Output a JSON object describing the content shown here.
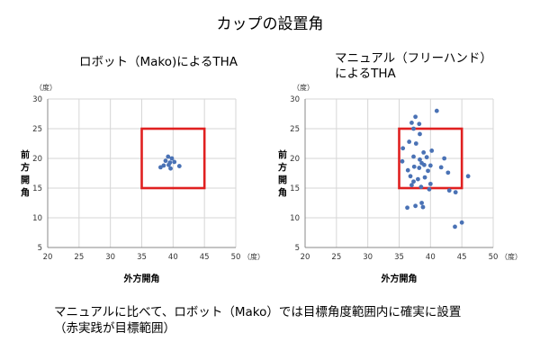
{
  "page": {
    "title": "カップの設置角",
    "caption_line1": "マニュアルに比べて、ロボット（Mako）では目標角度範囲内に確実に設置",
    "caption_line2": "（赤実践が目標範囲）"
  },
  "colors": {
    "point": "#4a72b5",
    "target_box": "#e02020",
    "grid": "#d6d6d6"
  },
  "chart_data": [
    {
      "type": "scatter",
      "title": "ロボット（Mako)によるTHA",
      "xlabel": "外方開角",
      "ylabel": "前方開角",
      "unit": "（度）",
      "xlim": [
        20,
        50
      ],
      "ylim": [
        5,
        30
      ],
      "xticks": [
        20,
        25,
        30,
        35,
        40,
        45,
        50
      ],
      "yticks": [
        5,
        10,
        15,
        20,
        25,
        30
      ],
      "grid": true,
      "target_box": {
        "x": [
          35,
          45
        ],
        "y": [
          15,
          25
        ]
      },
      "points": [
        [
          39.2,
          20.3
        ],
        [
          39.8,
          20.0
        ],
        [
          38.8,
          19.6
        ],
        [
          39.5,
          19.3
        ],
        [
          40.2,
          19.4
        ],
        [
          38.5,
          18.8
        ],
        [
          39.3,
          18.9
        ],
        [
          41.0,
          18.7
        ],
        [
          38.0,
          18.5
        ],
        [
          39.6,
          18.3
        ]
      ]
    },
    {
      "type": "scatter",
      "title_line1": "マニュアル（フリーハンド）",
      "title_line2": "によるTHA",
      "xlabel": "外方開角",
      "ylabel": "前方開角",
      "unit": "（度）",
      "xlim": [
        20,
        50
      ],
      "ylim": [
        5,
        30
      ],
      "xticks": [
        20,
        25,
        30,
        35,
        40,
        45,
        50
      ],
      "yticks": [
        5,
        10,
        15,
        20,
        25,
        30
      ],
      "grid": true,
      "target_box": {
        "x": [
          35,
          45
        ],
        "y": [
          15,
          25
        ]
      },
      "points": [
        [
          41.0,
          28.0
        ],
        [
          37.6,
          27.0
        ],
        [
          37.0,
          26.0
        ],
        [
          38.2,
          25.8
        ],
        [
          37.3,
          25.0
        ],
        [
          38.3,
          24.1
        ],
        [
          36.6,
          22.8
        ],
        [
          37.7,
          22.5
        ],
        [
          35.6,
          21.7
        ],
        [
          40.2,
          21.3
        ],
        [
          38.9,
          21.0
        ],
        [
          37.3,
          20.3
        ],
        [
          39.4,
          20.2
        ],
        [
          42.2,
          20.0
        ],
        [
          38.3,
          19.8
        ],
        [
          35.5,
          19.5
        ],
        [
          38.6,
          19.2
        ],
        [
          39.0,
          18.9
        ],
        [
          40.0,
          18.8
        ],
        [
          37.4,
          18.6
        ],
        [
          41.7,
          18.5
        ],
        [
          38.2,
          18.4
        ],
        [
          36.4,
          18.0
        ],
        [
          39.6,
          17.9
        ],
        [
          42.8,
          17.6
        ],
        [
          36.8,
          17.0
        ],
        [
          46.0,
          17.0
        ],
        [
          39.1,
          16.8
        ],
        [
          38.0,
          16.5
        ],
        [
          37.3,
          16.1
        ],
        [
          40.0,
          15.7
        ],
        [
          37.0,
          15.5
        ],
        [
          38.5,
          15.2
        ],
        [
          39.8,
          14.8
        ],
        [
          43.0,
          14.6
        ],
        [
          44.0,
          14.3
        ],
        [
          38.6,
          12.5
        ],
        [
          37.6,
          12.0
        ],
        [
          36.3,
          11.7
        ],
        [
          38.8,
          11.8
        ],
        [
          45.0,
          9.2
        ],
        [
          43.9,
          8.5
        ]
      ]
    }
  ]
}
